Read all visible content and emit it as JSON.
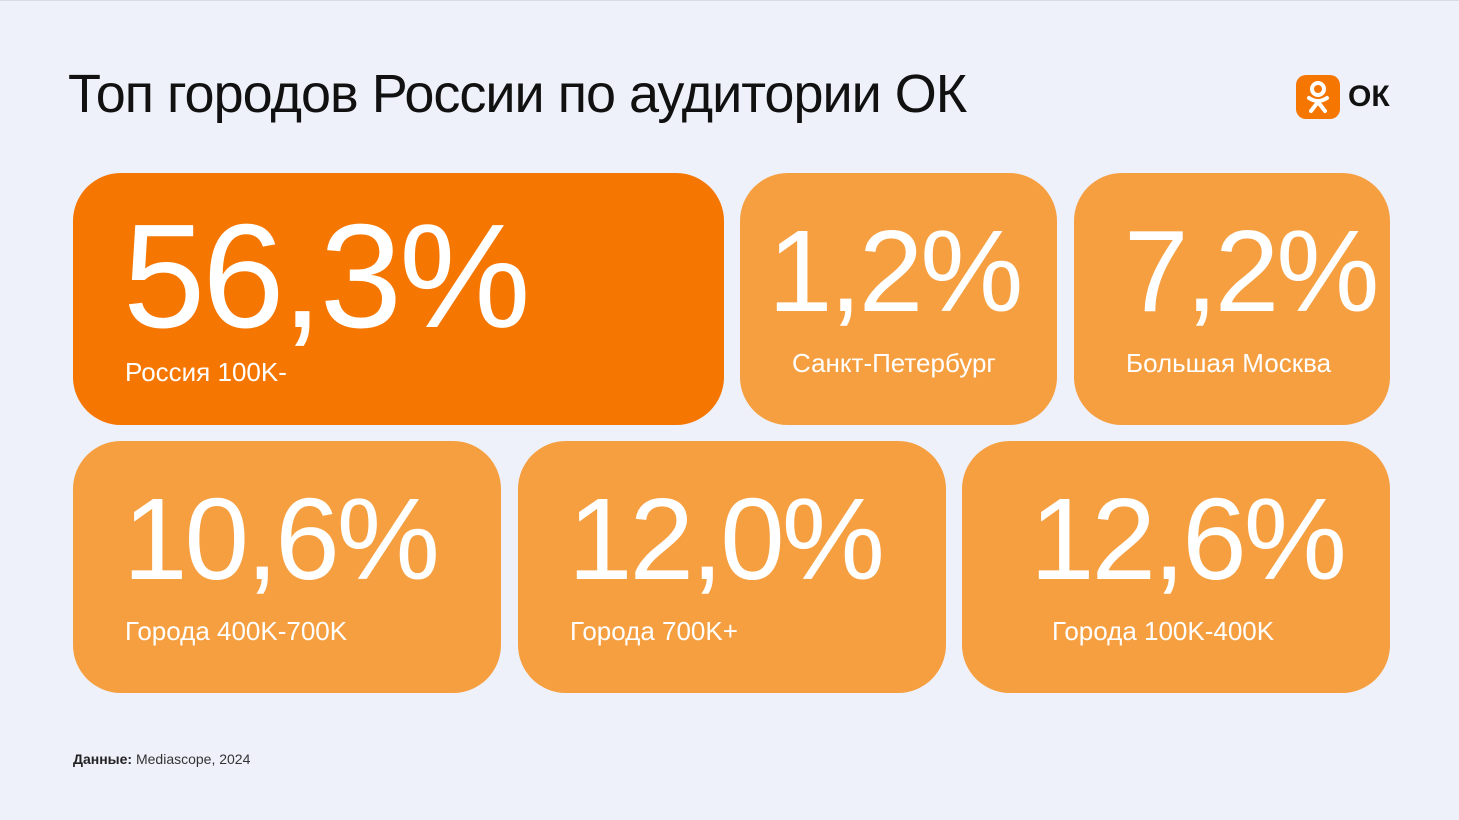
{
  "title": "Топ городов России по аудитории ОК",
  "logo": {
    "text": "ОК",
    "icon": "odnoklassniki-icon",
    "color": "#f57600"
  },
  "cards": [
    {
      "value": "56,3%",
      "label": "Россия 100K-",
      "color": "#f57600"
    },
    {
      "value": "1,2%",
      "label": "Санкт-Петербург",
      "color": "#f69f40"
    },
    {
      "value": "7,2%",
      "label": "Большая Москва",
      "color": "#f69f40"
    },
    {
      "value": "10,6%",
      "label": "Города 400K-700K",
      "color": "#f69f40"
    },
    {
      "value": "12,0%",
      "label": "Города 700K+",
      "color": "#f69f40"
    },
    {
      "value": "12,6%",
      "label": "Города 100K-400K",
      "color": "#f69f40"
    }
  ],
  "footer": {
    "label": "Данные:",
    "source": "Mediascope, 2024"
  }
}
